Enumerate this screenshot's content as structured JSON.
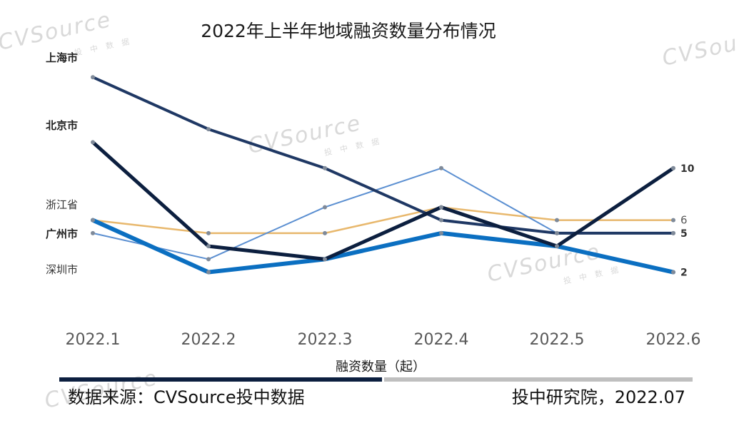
{
  "chart_data": {
    "type": "line",
    "title": "2022年上半年地域融资数量分布情况",
    "xlabel": "融资数量（起）",
    "ylabel": "",
    "categories": [
      "2022.1",
      "2022.2",
      "2022.3",
      "2022.4",
      "2022.5",
      "2022.6"
    ],
    "ylim": [
      0,
      18
    ],
    "series": [
      {
        "name": "上海市",
        "values": [
          17,
          13,
          10,
          6,
          5,
          5
        ],
        "end_label": "5",
        "color": "#1f3864"
      },
      {
        "name": "北京市",
        "values": [
          12,
          4,
          3,
          7,
          4,
          10
        ],
        "end_label": "10",
        "color": "#0c1f3f"
      },
      {
        "name": "浙江省",
        "values": [
          6,
          5,
          5,
          7,
          6,
          6
        ],
        "end_label": "6",
        "color": "#e8b86d"
      },
      {
        "name": "广州市",
        "values": [
          6,
          2,
          3,
          5,
          4,
          2
        ],
        "end_label": "2",
        "color": "#0b6fc1"
      },
      {
        "name": "深圳市",
        "values": [
          5,
          3,
          7,
          10,
          5,
          5
        ],
        "end_label": "",
        "color": "#5b8fd1"
      }
    ]
  },
  "watermark": {
    "brand": "CVSource",
    "sub": "投 中 数 据"
  },
  "footer": {
    "source": "数据来源：CVSource投中数据",
    "credit": "投中研究院，2022.07"
  }
}
